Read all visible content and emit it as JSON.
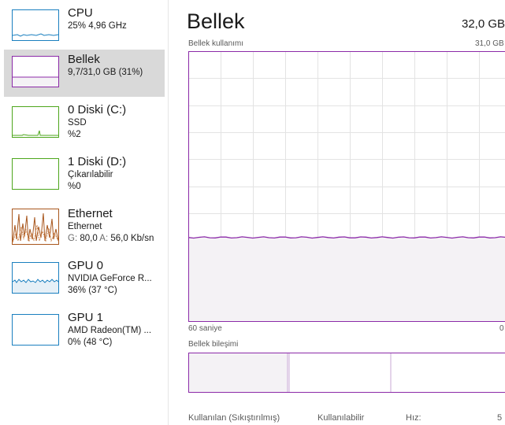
{
  "sidebar": {
    "items": [
      {
        "name": "CPU",
        "sub1": "25%  4,96 GHz",
        "sub2": "",
        "color": "#1a7fbf"
      },
      {
        "name": "Bellek",
        "sub1": "9,7/31,0 GB (31%)",
        "sub2": "",
        "color": "#8b2aa8",
        "selected": true
      },
      {
        "name": "0 Diski (C:)",
        "sub1": "SSD",
        "sub2": "%2",
        "color": "#4da61c"
      },
      {
        "name": "1 Diski (D:)",
        "sub1": "Çıkarılabilir",
        "sub2": "%0",
        "color": "#4da61c"
      },
      {
        "name": "Ethernet",
        "sub1": "Ethernet",
        "sub2_label_g": "G:",
        "sub2_g": "80,0",
        "sub2_label_a": "A:",
        "sub2_a": "56,0 Kb/sn",
        "color": "#a8561c"
      },
      {
        "name": "GPU 0",
        "sub1": "NVIDIA GeForce R...",
        "sub2": "36%  (37 °C)",
        "color": "#1a7fbf"
      },
      {
        "name": "GPU 1",
        "sub1": "AMD Radeon(TM) ...",
        "sub2": "0%  (48 °C)",
        "color": "#1a7fbf"
      }
    ]
  },
  "main": {
    "title": "Bellek",
    "total": "32,0 GB",
    "usage_label": "Bellek kullanımı",
    "usage_max": "31,0 GB",
    "time_label": "60 saniye",
    "time_right": "0",
    "composition_label": "Bellek bileşimi",
    "stats": {
      "in_use_label": "Kullanılan (Sıkıştırılmış)",
      "available_label": "Kullanılabilir",
      "speed_label": "Hız:",
      "speed_value_partial": "5"
    },
    "usage_fraction": 0.31
  },
  "colors": {
    "memory_accent": "#8b2aa8",
    "memory_fill": "#f4f2f5",
    "grid": "#e3e3e3"
  }
}
